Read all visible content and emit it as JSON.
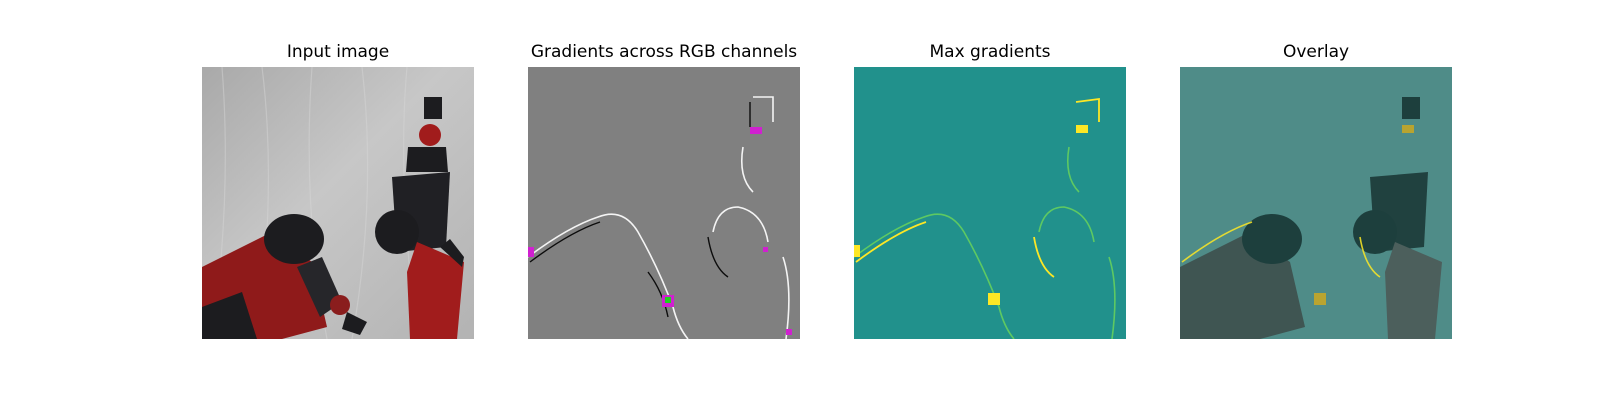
{
  "figure": {
    "panels": [
      {
        "title": "Input image"
      },
      {
        "title": "Gradients across RGB channels"
      },
      {
        "title": "Max gradients"
      },
      {
        "title": "Overlay"
      }
    ]
  },
  "colors": {
    "background": "#ffffff",
    "input_backdrop": "#bcbcbc",
    "robot_red": "#9a1a1a",
    "robot_dark": "#1c1c1f",
    "gradient_gray": "#808080",
    "gradient_magenta": "#d020d0",
    "max_grad_teal": "#21918c",
    "max_grad_yellow": "#fde725",
    "overlay_teal": "#4f8c88"
  }
}
